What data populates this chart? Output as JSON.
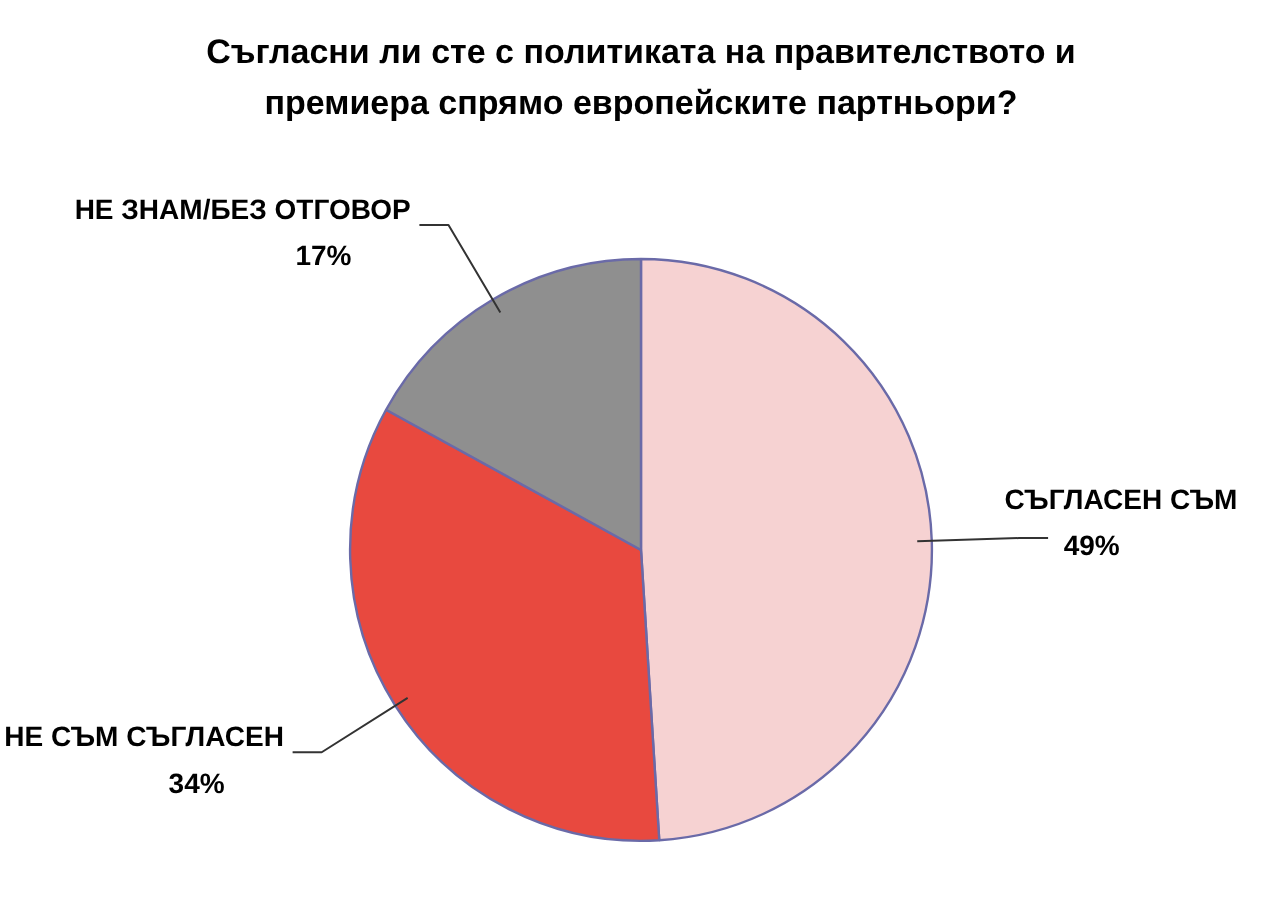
{
  "chart_data": {
    "type": "pie",
    "title": "Съгласни ли сте с политиката на правителството и премиера спрямо европейските партньори?",
    "categories": [
      "СЪГЛАСЕН СЪМ",
      "НЕ СЪМ СЪГЛАСЕН",
      "НЕ ЗНАМ/БЕЗ ОТГОВОР"
    ],
    "values": [
      49,
      34,
      17
    ],
    "value_labels": [
      "49%",
      "34%",
      "17%"
    ],
    "colors": [
      "#f6d2d2",
      "#e8493f",
      "#8f8f8f"
    ],
    "legend": false
  }
}
